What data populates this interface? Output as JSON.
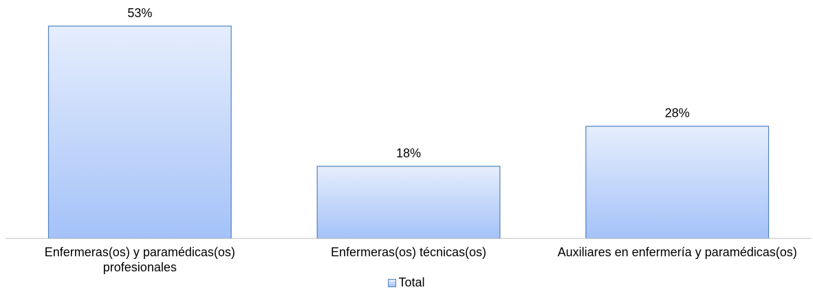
{
  "chart_data": {
    "type": "bar",
    "categories": [
      "Enfermeras(os) y paramédicas(os) profesionales",
      "Enfermeras(os) técnicas(os)",
      "Auxiliares en enfermería y paramédicas(os)"
    ],
    "series": [
      {
        "name": "Total",
        "color": "#a4c2f8",
        "edge_color": "#4f81bd",
        "values": [
          53,
          18,
          28
        ],
        "value_labels": [
          "53%",
          "18%",
          "28%"
        ]
      }
    ],
    "legend": "bottom"
  }
}
